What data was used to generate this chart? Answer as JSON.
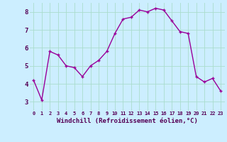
{
  "x": [
    0,
    1,
    2,
    3,
    4,
    5,
    6,
    7,
    8,
    9,
    10,
    11,
    12,
    13,
    14,
    15,
    16,
    17,
    18,
    19,
    20,
    21,
    22,
    23
  ],
  "y": [
    4.2,
    3.1,
    5.8,
    5.6,
    5.0,
    4.9,
    4.4,
    5.0,
    5.3,
    5.8,
    6.8,
    7.6,
    7.7,
    8.1,
    8.0,
    8.2,
    8.1,
    7.5,
    6.9,
    6.8,
    4.4,
    4.1,
    4.3,
    3.6
  ],
  "xlabel": "Windchill (Refroidissement éolien,°C)",
  "bg_color": "#cceeff",
  "line_color": "#990099",
  "marker_color": "#990099",
  "grid_color": "#aaddcc",
  "ylim": [
    2.5,
    8.5
  ],
  "xlim": [
    -0.5,
    23.5
  ],
  "yticks": [
    3,
    4,
    5,
    6,
    7,
    8
  ],
  "xticks": [
    0,
    1,
    2,
    3,
    4,
    5,
    6,
    7,
    8,
    9,
    10,
    11,
    12,
    13,
    14,
    15,
    16,
    17,
    18,
    19,
    20,
    21,
    22,
    23
  ]
}
